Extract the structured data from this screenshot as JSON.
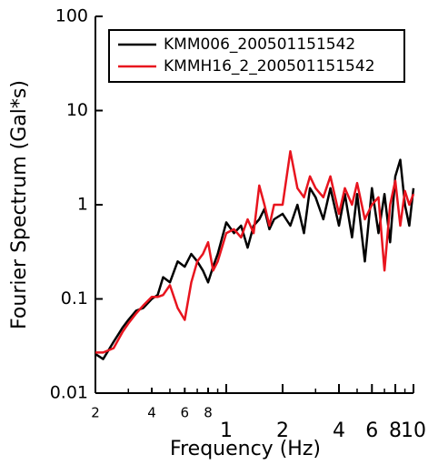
{
  "chart_data": {
    "type": "line",
    "x_label": "Frequency (Hz)",
    "y_label": "Fourier Spectrum (Gal*s)",
    "xlog": true,
    "ylog": true,
    "xlim": [
      0.2,
      10
    ],
    "ylim": [
      0.01,
      100
    ],
    "xticks": [
      {
        "value": 0.2,
        "label": "2"
      },
      {
        "value": 0.4,
        "label": "4"
      },
      {
        "value": 0.6,
        "label": "6"
      },
      {
        "value": 0.8,
        "label": "8"
      },
      1,
      2,
      4,
      6,
      8,
      10
    ],
    "xminorticks": [
      0.3,
      0.5,
      0.7,
      0.9,
      3,
      5,
      7,
      9
    ],
    "yticks": [
      0.01,
      0.1,
      1,
      10,
      100
    ],
    "legend": "top-right",
    "x": [
      0.2,
      0.22,
      0.25,
      0.28,
      0.3,
      0.33,
      0.36,
      0.4,
      0.43,
      0.46,
      0.5,
      0.55,
      0.6,
      0.65,
      0.7,
      0.75,
      0.8,
      0.85,
      0.9,
      1.0,
      1.1,
      1.2,
      1.3,
      1.4,
      1.5,
      1.6,
      1.7,
      1.8,
      2.0,
      2.2,
      2.4,
      2.6,
      2.8,
      3.0,
      3.3,
      3.6,
      4.0,
      4.3,
      4.7,
      5.0,
      5.5,
      6.0,
      6.5,
      7.0,
      7.5,
      8.0,
      8.5,
      9.0,
      9.5,
      10
    ],
    "series": [
      {
        "name": "KMM006_200501151542",
        "color": "#000000",
        "values": [
          0.026,
          0.023,
          0.035,
          0.05,
          0.06,
          0.075,
          0.08,
          0.1,
          0.11,
          0.17,
          0.15,
          0.25,
          0.22,
          0.3,
          0.25,
          0.2,
          0.15,
          0.22,
          0.3,
          0.65,
          0.5,
          0.6,
          0.35,
          0.6,
          0.7,
          0.9,
          0.55,
          0.7,
          0.8,
          0.6,
          1.0,
          0.5,
          1.5,
          1.2,
          0.7,
          1.5,
          0.6,
          1.3,
          0.45,
          1.3,
          0.25,
          1.5,
          0.5,
          1.3,
          0.4,
          2.0,
          3.0,
          1.0,
          0.6,
          1.5
        ]
      },
      {
        "name": "KMMH16_2_200501151542",
        "color": "#e8141e",
        "values": [
          0.027,
          0.027,
          0.03,
          0.045,
          0.055,
          0.07,
          0.085,
          0.105,
          0.105,
          0.11,
          0.14,
          0.08,
          0.06,
          0.15,
          0.25,
          0.3,
          0.4,
          0.2,
          0.25,
          0.5,
          0.55,
          0.45,
          0.7,
          0.5,
          1.6,
          1.0,
          0.6,
          1.0,
          1.0,
          3.7,
          1.5,
          1.2,
          2.0,
          1.5,
          1.2,
          2.0,
          0.8,
          1.5,
          1.0,
          1.7,
          0.7,
          1.0,
          1.2,
          0.2,
          1.0,
          1.8,
          0.6,
          1.4,
          1.0,
          1.3
        ]
      }
    ]
  }
}
